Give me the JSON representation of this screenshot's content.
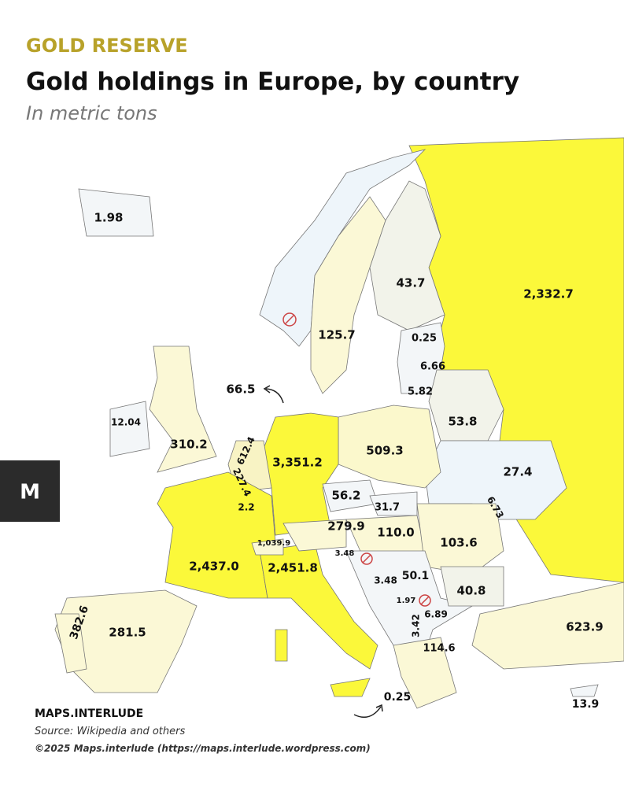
{
  "header": {
    "kicker": "GOLD RESERVE",
    "title": "Gold holdings in Europe, by country",
    "subtitle": "In metric tons"
  },
  "logo": "M",
  "labels": [
    "1.98",
    "43.7",
    "2,332.7",
    "125.7",
    "0.25",
    "6.66",
    "66.5",
    "5.82",
    "12.04",
    "310.2",
    "612.4",
    "3,351.2",
    "509.3",
    "53.8",
    "227.4",
    "2.2",
    "56.2",
    "31.7",
    "27.4",
    "6.73",
    "279.9",
    "110.0",
    "103.6",
    "2,437.0",
    "1,039.9",
    "3.48",
    "2,451.8",
    "3.48",
    "50.1",
    "40.8",
    "1.97",
    "6.89",
    "382.6",
    "281.5",
    "3.42",
    "623.9",
    "114.6",
    "0.25",
    "13.9"
  ],
  "footer": {
    "brand": "MAPS.INTERLUDE",
    "source": "Source: Wikipedia and others",
    "copyright": "©2025 Maps.interlude (https://maps.interlude.wordpress.com)"
  }
}
